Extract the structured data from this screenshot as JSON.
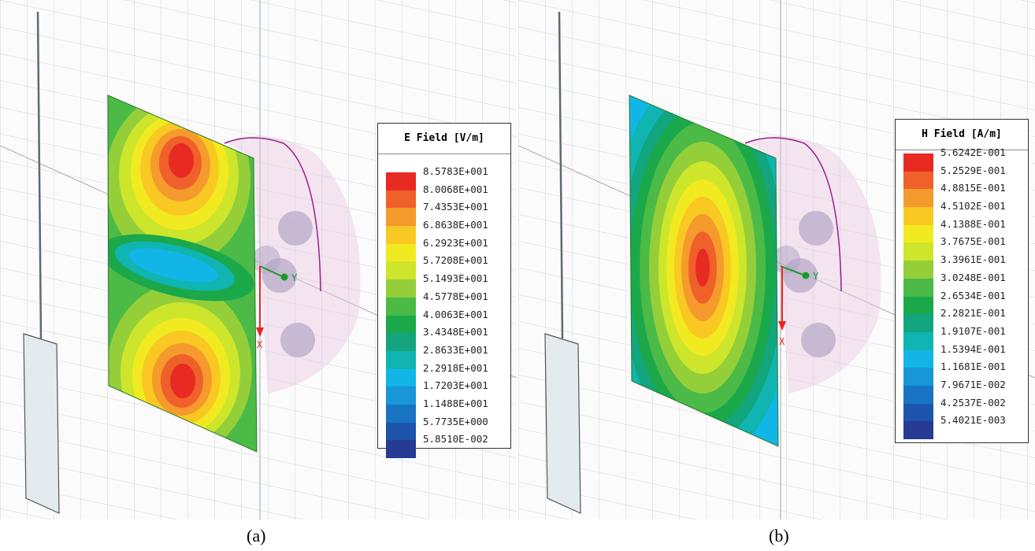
{
  "panels": [
    {
      "caption": "(a)",
      "legend_title": "E Field [V/m]",
      "axis_labels": {
        "y": "Y",
        "x": "X"
      },
      "legend": [
        {
          "value": "8.5783E+001",
          "color": "#e82a22"
        },
        {
          "value": "8.0068E+001",
          "color": "#f0602a"
        },
        {
          "value": "7.4353E+001",
          "color": "#f59a2c"
        },
        {
          "value": "6.8638E+001",
          "color": "#f9c822"
        },
        {
          "value": "6.2923E+001",
          "color": "#f2ea20"
        },
        {
          "value": "5.7208E+001",
          "color": "#cde62c"
        },
        {
          "value": "5.1493E+001",
          "color": "#94cf3a"
        },
        {
          "value": "4.5778E+001",
          "color": "#4cba46"
        },
        {
          "value": "4.0063E+001",
          "color": "#1aa84a"
        },
        {
          "value": "3.4348E+001",
          "color": "#12a57e"
        },
        {
          "value": "2.8633E+001",
          "color": "#10b4b0"
        },
        {
          "value": "2.2918E+001",
          "color": "#12b6e6"
        },
        {
          "value": "1.7203E+001",
          "color": "#1796d8"
        },
        {
          "value": "1.1488E+001",
          "color": "#1a74c4"
        },
        {
          "value": "5.7735E+000",
          "color": "#1d55ad"
        },
        {
          "value": "5.8510E-002",
          "color": "#273a94"
        }
      ]
    },
    {
      "caption": "(b)",
      "legend_title": "H Field [A/m]",
      "axis_labels": {
        "y": "Y",
        "x": "X"
      },
      "legend": [
        {
          "value": "5.6242E-001",
          "color": "#e82a22"
        },
        {
          "value": "5.2529E-001",
          "color": "#f0602a"
        },
        {
          "value": "4.8815E-001",
          "color": "#f59a2c"
        },
        {
          "value": "4.5102E-001",
          "color": "#f9c822"
        },
        {
          "value": "4.1388E-001",
          "color": "#f2ea20"
        },
        {
          "value": "3.7675E-001",
          "color": "#cde62c"
        },
        {
          "value": "3.3961E-001",
          "color": "#94cf3a"
        },
        {
          "value": "3.0248E-001",
          "color": "#4cba46"
        },
        {
          "value": "2.6534E-001",
          "color": "#1aa84a"
        },
        {
          "value": "2.2821E-001",
          "color": "#12a57e"
        },
        {
          "value": "1.9107E-001",
          "color": "#10b4b0"
        },
        {
          "value": "1.5394E-001",
          "color": "#12b6e6"
        },
        {
          "value": "1.1681E-001",
          "color": "#1796d8"
        },
        {
          "value": "7.9671E-002",
          "color": "#1a74c4"
        },
        {
          "value": "4.2537E-002",
          "color": "#1d55ad"
        },
        {
          "value": "5.4021E-003",
          "color": "#273a94"
        }
      ]
    }
  ]
}
